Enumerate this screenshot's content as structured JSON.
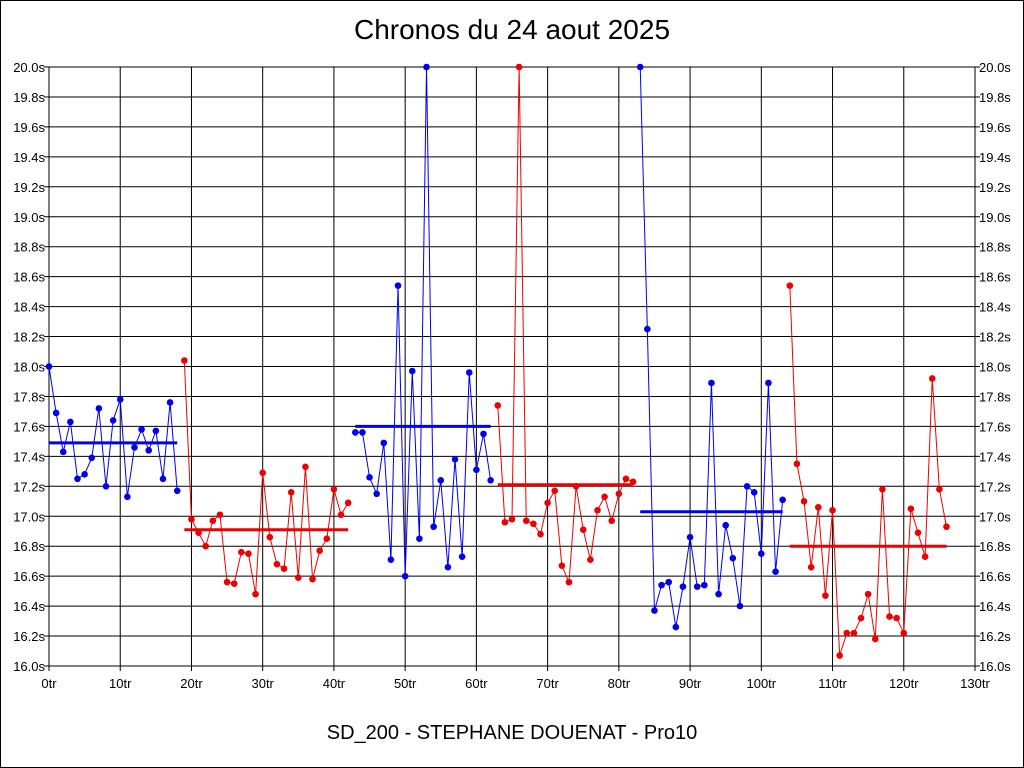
{
  "chart_data": {
    "type": "line",
    "title": "Chronos du 24 aout 2025",
    "xlabel": "SD_200 - STEPHANE DOUENAT - Pro10",
    "ylabel": "",
    "xlim": [
      0,
      130
    ],
    "ylim": [
      16.0,
      20.0
    ],
    "grid": true,
    "x_ticks": [
      0,
      10,
      20,
      30,
      40,
      50,
      60,
      70,
      80,
      90,
      100,
      110,
      120,
      130
    ],
    "x_tick_labels": [
      "0tr",
      "10tr",
      "20tr",
      "30tr",
      "40tr",
      "50tr",
      "60tr",
      "70tr",
      "80tr",
      "90tr",
      "100tr",
      "110tr",
      "120tr",
      "130tr"
    ],
    "y_ticks": [
      16.0,
      16.2,
      16.4,
      16.6,
      16.8,
      17.0,
      17.2,
      17.4,
      17.6,
      17.8,
      18.0,
      18.2,
      18.4,
      18.6,
      18.8,
      19.0,
      19.2,
      19.4,
      19.6,
      19.8,
      20.0
    ],
    "y_tick_labels": [
      "16.0s",
      "16.2s",
      "16.4s",
      "16.6s",
      "16.8s",
      "17.0s",
      "17.2s",
      "17.4s",
      "17.6s",
      "17.8s",
      "18.0s",
      "18.2s",
      "18.4s",
      "18.6s",
      "18.8s",
      "19.0s",
      "19.2s",
      "19.4s",
      "19.6s",
      "19.8s",
      "20.0s"
    ],
    "colors": {
      "blue": "#0000ee",
      "red": "#ee0000"
    },
    "series": [
      {
        "name": "segment-1",
        "color": "blue",
        "start_x": 0,
        "values": [
          18.0,
          17.69,
          17.43,
          17.63,
          17.25,
          17.28,
          17.39,
          17.72,
          17.2,
          17.64,
          17.78,
          17.13,
          17.46,
          17.58,
          17.44,
          17.57,
          17.25,
          17.76,
          17.17
        ],
        "mean": 17.49,
        "mean_range": [
          0,
          18
        ]
      },
      {
        "name": "segment-2",
        "color": "red",
        "start_x": 19,
        "values": [
          18.04,
          16.98,
          16.89,
          16.8,
          16.97,
          17.01,
          16.56,
          16.55,
          16.76,
          16.75,
          16.48,
          17.29,
          16.86,
          16.68,
          16.65,
          17.16,
          16.59,
          17.33,
          16.58,
          16.77,
          16.85,
          17.18,
          17.01,
          17.09
        ],
        "mean": 16.91,
        "mean_range": [
          19,
          42
        ]
      },
      {
        "name": "segment-3",
        "color": "blue",
        "start_x": 43,
        "values": [
          17.56,
          17.56,
          17.26,
          17.15,
          17.49,
          16.71,
          18.54,
          16.6,
          17.97,
          16.85,
          20.0,
          16.93,
          17.24,
          16.66,
          17.38,
          16.73,
          17.96,
          17.31,
          17.55,
          17.24
        ],
        "mean": 17.6,
        "mean_range": [
          43,
          62
        ]
      },
      {
        "name": "segment-4",
        "color": "red",
        "start_x": 63,
        "values": [
          17.74,
          16.96,
          16.98,
          20.0,
          16.97,
          16.95,
          16.88,
          17.09,
          17.17,
          16.67,
          16.56,
          17.2,
          16.91,
          16.71,
          17.04,
          17.13,
          16.97,
          17.15,
          17.25,
          17.23
        ],
        "mean": 17.21,
        "mean_range": [
          63,
          82
        ]
      },
      {
        "name": "segment-5",
        "color": "blue",
        "start_x": 83,
        "values": [
          20.0,
          18.25,
          16.37,
          16.54,
          16.56,
          16.26,
          16.53,
          16.86,
          16.53,
          16.54,
          17.89,
          16.48,
          16.94,
          16.72,
          16.4,
          17.2,
          17.16,
          16.75,
          17.89,
          16.63,
          17.11
        ],
        "mean": 17.03,
        "mean_range": [
          83,
          103
        ]
      },
      {
        "name": "segment-6",
        "color": "red",
        "start_x": 104,
        "values": [
          18.54,
          17.35,
          17.1,
          16.66,
          17.06,
          16.47,
          17.04,
          16.07,
          16.22,
          16.22,
          16.32,
          16.48,
          16.18,
          17.18,
          16.33,
          16.32,
          16.22,
          17.05,
          16.89,
          16.73,
          17.92,
          17.18,
          16.93
        ],
        "mean": 16.8,
        "mean_range": [
          104,
          126
        ]
      }
    ]
  }
}
